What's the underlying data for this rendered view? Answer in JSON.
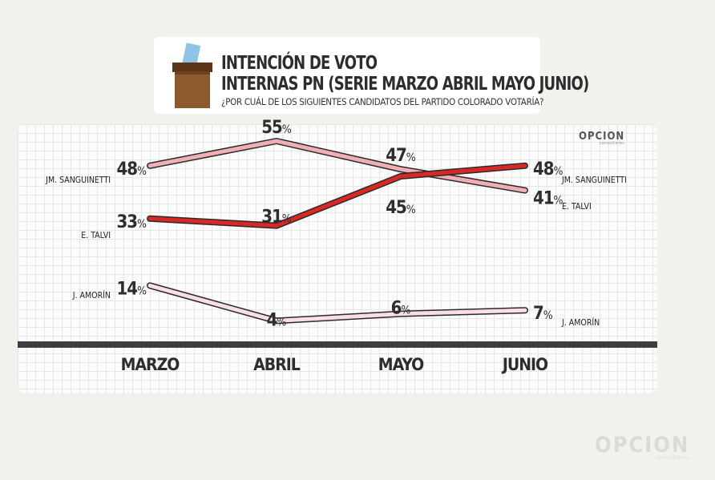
{
  "header": {
    "title_line1": "INTENCIÓN DE VOTO",
    "title_line2": "INTERNAS PN (SERIE MARZO ABRIL MAYO JUNIO)",
    "question": "¿POR CUÁL DE LOS SIGUIENTES CANDIDATOS DEL PARTIDO COLORADO VOTARÍA?"
  },
  "brand": {
    "name": "OPCION",
    "tagline": "consultores"
  },
  "colors": {
    "sanguinetti": "#f1aeb4",
    "talvi": "#d82824",
    "amorin": "#f8dfe4",
    "axis": "#3b3f42",
    "text": "#2d2d2d"
  },
  "chart_data": {
    "type": "line",
    "categories": [
      "MARZO",
      "ABRIL",
      "MAYO",
      "JUNIO"
    ],
    "series": [
      {
        "name": "JM. SANGUINETTI",
        "values": [
          48,
          55,
          47,
          41
        ]
      },
      {
        "name": "E. TALVI",
        "values": [
          33,
          31,
          45,
          48
        ]
      },
      {
        "name": "J. AMORÍN",
        "values": [
          14,
          4,
          6,
          7
        ]
      }
    ],
    "value_suffix": "%",
    "ylim": [
      0,
      60
    ],
    "grid": true
  }
}
